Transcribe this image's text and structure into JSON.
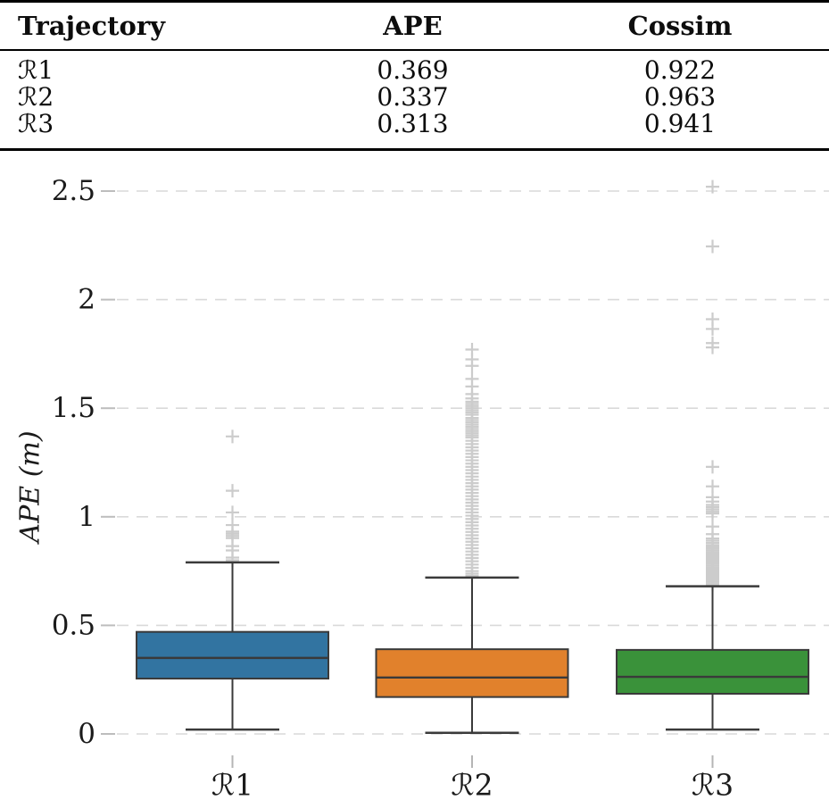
{
  "table": {
    "headers": {
      "trajectory": "Trajectory",
      "ape": "APE",
      "cossim": "Cossim"
    },
    "rows": [
      {
        "trajectory": "ℛ1",
        "ape": "0.369",
        "cossim": "0.922"
      },
      {
        "trajectory": "ℛ2",
        "ape": "0.337",
        "cossim": "0.963"
      },
      {
        "trajectory": "ℛ3",
        "ape": "0.313",
        "cossim": "0.941"
      }
    ]
  },
  "chart_data": {
    "type": "boxplot",
    "ylabel": "APE (m)",
    "yticks": [
      0,
      0.5,
      1,
      1.5,
      2,
      2.5
    ],
    "ylim": [
      -0.13,
      2.62
    ],
    "grid": {
      "horizontal": true,
      "style": "dashed",
      "color": "#d9d9d9"
    },
    "outlier_marker": "+",
    "outlier_color": "#cccccc",
    "box_edge_color": "#3a3a3a",
    "categories": [
      "ℛ1",
      "ℛ2",
      "ℛ3"
    ],
    "series": [
      {
        "label": "ℛ1",
        "color": "#3274a1",
        "whislo": 0.02,
        "q1": 0.255,
        "med": 0.35,
        "q3": 0.47,
        "whishi": 0.79,
        "outliers": [
          1.37,
          1.12,
          1.02,
          0.962,
          0.932,
          0.922,
          0.912,
          0.902,
          0.865,
          0.845,
          0.812,
          0.8
        ]
      },
      {
        "label": "ℛ2",
        "color": "#e1812c",
        "whislo": 0.005,
        "q1": 0.17,
        "med": 0.26,
        "q3": 0.39,
        "whishi": 0.72,
        "outliers": [
          1.77,
          1.725,
          1.695,
          1.635,
          1.6,
          1.565,
          1.545,
          1.53,
          1.52,
          1.51,
          1.5,
          1.49,
          1.48,
          1.47,
          1.455,
          1.445,
          1.435,
          1.425,
          1.415,
          1.405,
          1.395,
          1.385,
          1.375,
          1.365,
          1.35,
          1.335,
          1.32,
          1.305,
          1.29,
          1.275,
          1.26,
          1.245,
          1.23,
          1.215,
          1.2,
          1.185,
          1.17,
          1.155,
          1.14,
          1.125,
          1.11,
          1.095,
          1.08,
          1.065,
          1.05,
          1.035,
          1.02,
          1.005,
          0.99,
          0.975,
          0.96,
          0.945,
          0.93,
          0.915,
          0.9,
          0.885,
          0.87,
          0.855,
          0.84,
          0.825,
          0.81,
          0.795,
          0.78,
          0.765,
          0.75,
          0.738,
          0.728
        ]
      },
      {
        "label": "ℛ3",
        "color": "#3a923a",
        "whislo": 0.02,
        "q1": 0.185,
        "med": 0.263,
        "q3": 0.387,
        "whishi": 0.68,
        "outliers": [
          2.52,
          2.245,
          1.91,
          1.865,
          1.8,
          1.78,
          1.23,
          1.14,
          1.09,
          1.07,
          1.055,
          1.045,
          1.035,
          1.025,
          1.015,
          0.955,
          0.92,
          0.9,
          0.89,
          0.88,
          0.87,
          0.862,
          0.854,
          0.846,
          0.838,
          0.83,
          0.822,
          0.814,
          0.806,
          0.798,
          0.79,
          0.782,
          0.774,
          0.766,
          0.758,
          0.75,
          0.742,
          0.734,
          0.726,
          0.718,
          0.71,
          0.702,
          0.694,
          0.686
        ]
      }
    ]
  }
}
